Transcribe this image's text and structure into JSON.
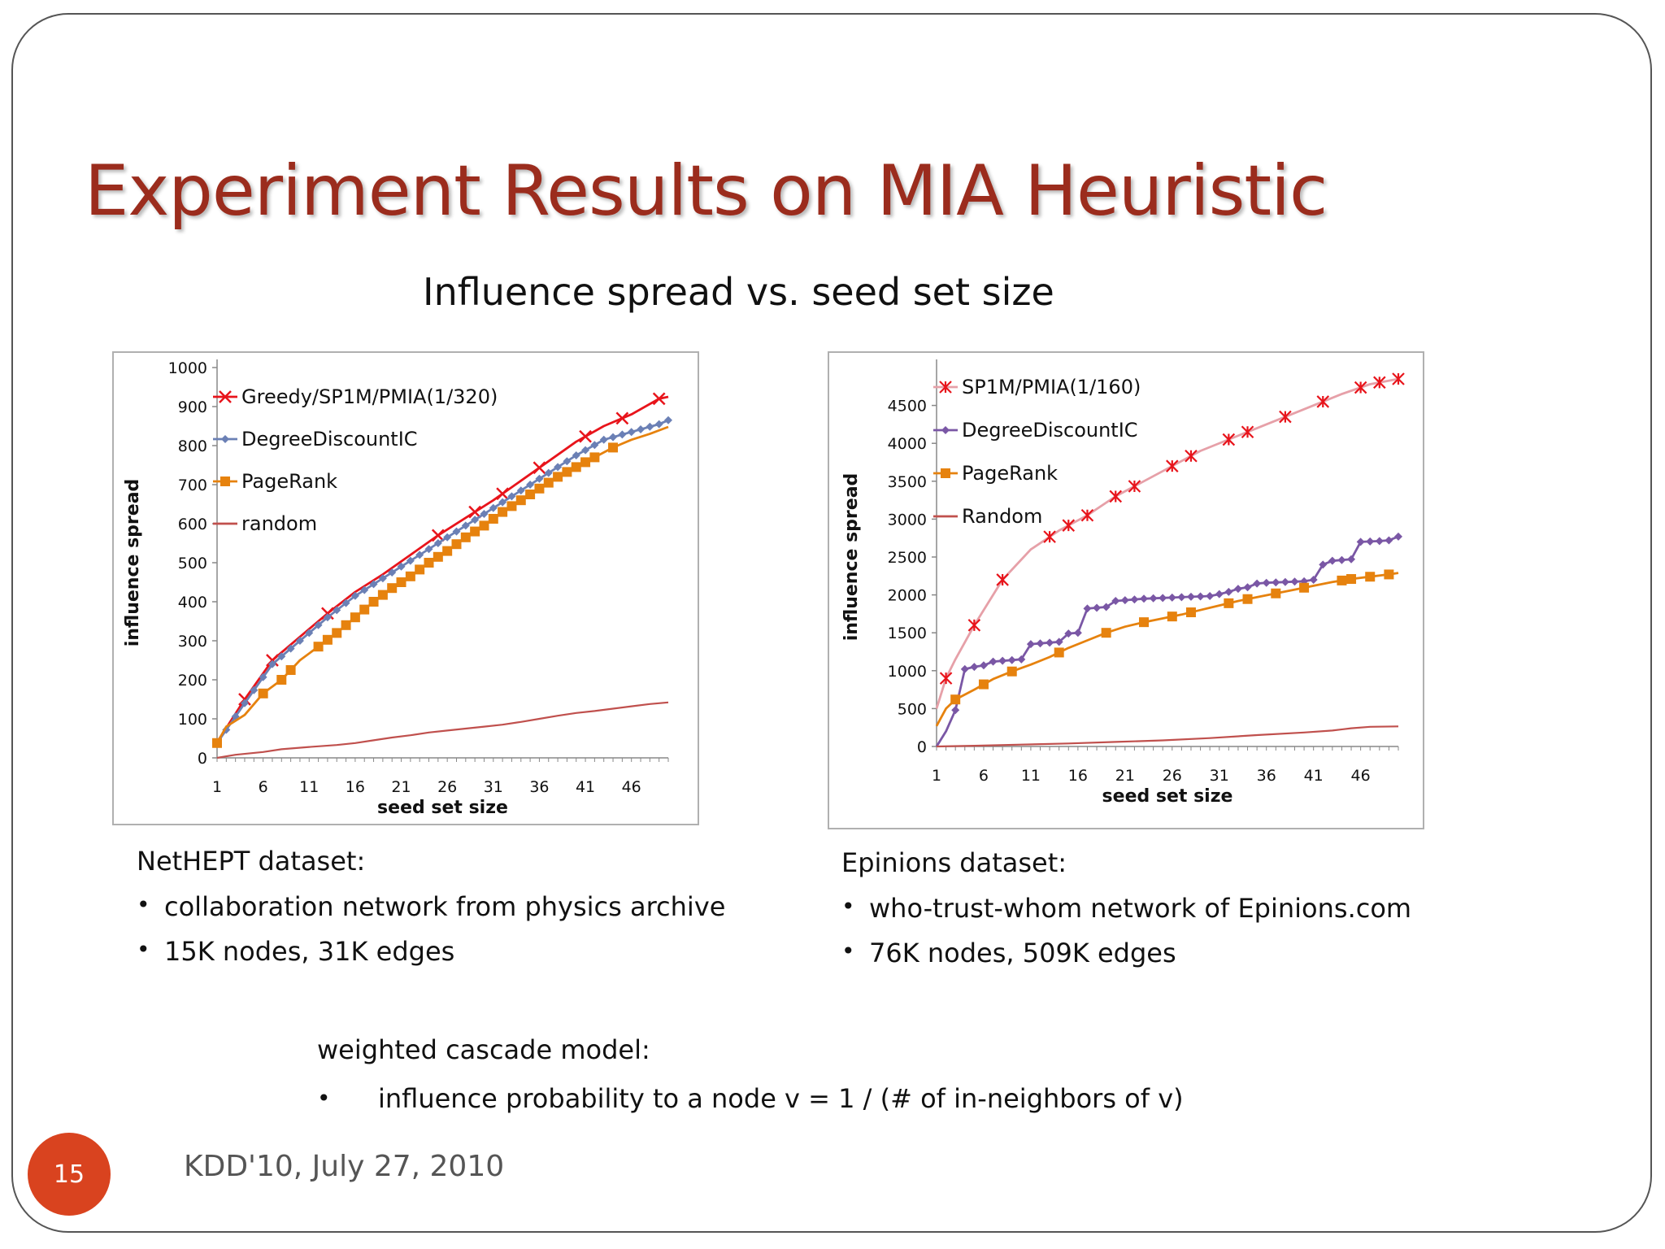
{
  "slide": {
    "title": "Experiment Results on MIA Heuristic",
    "subtitle": "Influence spread vs. seed set size",
    "page_number": "15",
    "footer": "KDD'10, July 27, 2010",
    "accent_color": "#9b2c1d",
    "badge_color": "#d9431f"
  },
  "datasets": [
    {
      "name": "NetHEPT dataset:",
      "bullets": [
        "collaboration network from physics  archive",
        "15K nodes, 31K edges"
      ]
    },
    {
      "name": "Epinions dataset:",
      "bullets": [
        "who-trust-whom network of Epinions.com",
        "76K nodes, 509K edges"
      ]
    }
  ],
  "model": {
    "title": "weighted cascade model:",
    "item": "influence probability to a node v = 1 / (# of in-neighbors of v)"
  },
  "chart_data": [
    {
      "type": "line",
      "xlabel": "seed set size",
      "ylabel": "influence spread",
      "ylim": [
        0,
        1000
      ],
      "yticks": [
        0,
        100,
        200,
        300,
        400,
        500,
        600,
        700,
        800,
        900,
        1000
      ],
      "xlim": [
        1,
        50
      ],
      "xticks": [
        1,
        6,
        11,
        16,
        21,
        26,
        31,
        36,
        41,
        46
      ],
      "legend_position": "top-left",
      "series": [
        {
          "name": "Greedy/SP1M/PMIA(1/320)",
          "color": "#e8141b",
          "marker": "x",
          "x": [
            1,
            4,
            7,
            10,
            13,
            16,
            19,
            22,
            25,
            28,
            31,
            34,
            37,
            40,
            43,
            46,
            49,
            50
          ],
          "y": [
            40,
            150,
            250,
            310,
            370,
            425,
            470,
            520,
            570,
            615,
            660,
            710,
            760,
            810,
            850,
            880,
            920,
            925
          ],
          "marker_x": [
            4,
            7,
            13,
            25,
            29,
            32,
            36,
            41,
            45,
            49
          ]
        },
        {
          "name": "DegreeDiscountIC",
          "color": "#6b80b5",
          "marker": "diamond",
          "x": [
            1,
            4,
            7,
            10,
            13,
            16,
            19,
            22,
            25,
            28,
            31,
            34,
            37,
            40,
            43,
            46,
            49,
            50
          ],
          "y": [
            38,
            140,
            240,
            300,
            360,
            415,
            460,
            505,
            550,
            595,
            640,
            685,
            730,
            775,
            815,
            835,
            855,
            865
          ],
          "marker_x": [
            2,
            3,
            4,
            5,
            6,
            7,
            8,
            9,
            10,
            11,
            12,
            13,
            14,
            15,
            16,
            17,
            18,
            19,
            20,
            21,
            22,
            23,
            24,
            25,
            26,
            27,
            28,
            29,
            30,
            31,
            32,
            33,
            34,
            35,
            36,
            37,
            38,
            39,
            40,
            41,
            42,
            43,
            44,
            45,
            46,
            47,
            48,
            49,
            50
          ]
        },
        {
          "name": "PageRank",
          "color": "#e6820e",
          "marker": "square",
          "x": [
            1,
            2,
            4,
            6,
            8,
            10,
            12,
            14,
            16,
            18,
            20,
            22,
            24,
            26,
            28,
            30,
            32,
            34,
            36,
            38,
            40,
            42,
            44,
            46,
            48,
            50
          ],
          "y": [
            38,
            80,
            110,
            165,
            200,
            250,
            285,
            320,
            360,
            400,
            435,
            465,
            500,
            530,
            565,
            595,
            630,
            660,
            690,
            720,
            745,
            770,
            795,
            815,
            830,
            848
          ],
          "marker_x": [
            1,
            6,
            8,
            9,
            12,
            13,
            14,
            15,
            16,
            17,
            18,
            19,
            20,
            21,
            22,
            23,
            24,
            25,
            26,
            27,
            28,
            29,
            30,
            31,
            32,
            33,
            34,
            35,
            36,
            37,
            38,
            39,
            40,
            41,
            42,
            44
          ]
        },
        {
          "name": "random",
          "color": "#c0504d",
          "marker": "none",
          "x": [
            1,
            3,
            6,
            8,
            11,
            14,
            16,
            18,
            20,
            22,
            24,
            26,
            28,
            30,
            32,
            34,
            36,
            38,
            40,
            42,
            44,
            46,
            48,
            50
          ],
          "y": [
            0,
            8,
            15,
            22,
            28,
            33,
            38,
            45,
            52,
            58,
            65,
            70,
            75,
            80,
            85,
            92,
            100,
            108,
            115,
            120,
            126,
            132,
            138,
            142
          ]
        }
      ]
    },
    {
      "type": "line",
      "xlabel": "seed set size",
      "ylabel": "influence spread",
      "ylim": [
        0,
        5000
      ],
      "yticks": [
        0,
        500,
        1000,
        1500,
        2000,
        2500,
        3000,
        3500,
        4000,
        4500
      ],
      "xlim": [
        1,
        50
      ],
      "xticks": [
        1,
        6,
        11,
        16,
        21,
        26,
        31,
        36,
        41,
        46
      ],
      "legend_position": "top-left",
      "series": [
        {
          "name": "SP1M/PMIA(1/160)",
          "color": "#e6a0a8",
          "marker": "asterisk",
          "marker_color": "#e8141b",
          "x": [
            1,
            2,
            3,
            5,
            8,
            11,
            14,
            17,
            20,
            23,
            26,
            29,
            32,
            35,
            38,
            41,
            44,
            47,
            50
          ],
          "y": [
            500,
            900,
            1150,
            1600,
            2200,
            2600,
            2850,
            3050,
            3300,
            3500,
            3700,
            3900,
            4050,
            4200,
            4350,
            4500,
            4650,
            4780,
            4850
          ],
          "marker_x": [
            2,
            5,
            8,
            13,
            15,
            17,
            20,
            22,
            26,
            28,
            32,
            34,
            38,
            42,
            46,
            48,
            50
          ]
        },
        {
          "name": "DegreeDiscountIC",
          "color": "#7a57a5",
          "marker": "diamond",
          "x": [
            1,
            2,
            3,
            4,
            5,
            6,
            7,
            8,
            9,
            10,
            11,
            12,
            13,
            14,
            15,
            16,
            17,
            18,
            19,
            20,
            21,
            22,
            23,
            24,
            25,
            26,
            27,
            28,
            29,
            30,
            31,
            32,
            33,
            34,
            35,
            36,
            37,
            38,
            39,
            40,
            41,
            42,
            43,
            44,
            45,
            46,
            47,
            48,
            49,
            50
          ],
          "y": [
            0,
            200,
            480,
            1020,
            1050,
            1070,
            1120,
            1130,
            1140,
            1150,
            1350,
            1360,
            1370,
            1380,
            1490,
            1500,
            1820,
            1830,
            1840,
            1920,
            1930,
            1940,
            1950,
            1955,
            1960,
            1965,
            1970,
            1975,
            1980,
            1985,
            2010,
            2040,
            2080,
            2100,
            2150,
            2160,
            2165,
            2170,
            2175,
            2180,
            2200,
            2400,
            2450,
            2460,
            2470,
            2700,
            2705,
            2710,
            2720,
            2770
          ],
          "marker_x": [
            3,
            4,
            5,
            6,
            7,
            8,
            9,
            10,
            11,
            12,
            13,
            14,
            15,
            16,
            17,
            18,
            19,
            20,
            21,
            22,
            23,
            24,
            25,
            26,
            27,
            28,
            29,
            30,
            31,
            32,
            33,
            34,
            35,
            36,
            37,
            38,
            39,
            40,
            41,
            42,
            43,
            44,
            45,
            46,
            47,
            48,
            49,
            50
          ]
        },
        {
          "name": "PageRank",
          "color": "#e6820e",
          "marker": "square",
          "x": [
            1,
            2,
            3,
            5,
            7,
            9,
            11,
            13,
            15,
            17,
            19,
            21,
            23,
            25,
            27,
            29,
            31,
            33,
            35,
            37,
            39,
            41,
            43,
            45,
            47,
            49,
            50
          ],
          "y": [
            270,
            500,
            620,
            750,
            890,
            990,
            1080,
            1180,
            1300,
            1400,
            1500,
            1580,
            1640,
            1690,
            1740,
            1800,
            1860,
            1920,
            1970,
            2020,
            2070,
            2120,
            2170,
            2210,
            2240,
            2270,
            2290
          ],
          "marker_x": [
            3,
            6,
            9,
            14,
            19,
            23,
            26,
            28,
            32,
            34,
            37,
            40,
            44,
            45,
            47,
            49
          ]
        },
        {
          "name": "Random",
          "color": "#c0504d",
          "marker": "none",
          "x": [
            1,
            5,
            10,
            15,
            20,
            25,
            30,
            35,
            40,
            43,
            45,
            47,
            50
          ],
          "y": [
            0,
            10,
            25,
            40,
            60,
            80,
            110,
            150,
            185,
            210,
            240,
            260,
            265
          ]
        }
      ]
    }
  ]
}
